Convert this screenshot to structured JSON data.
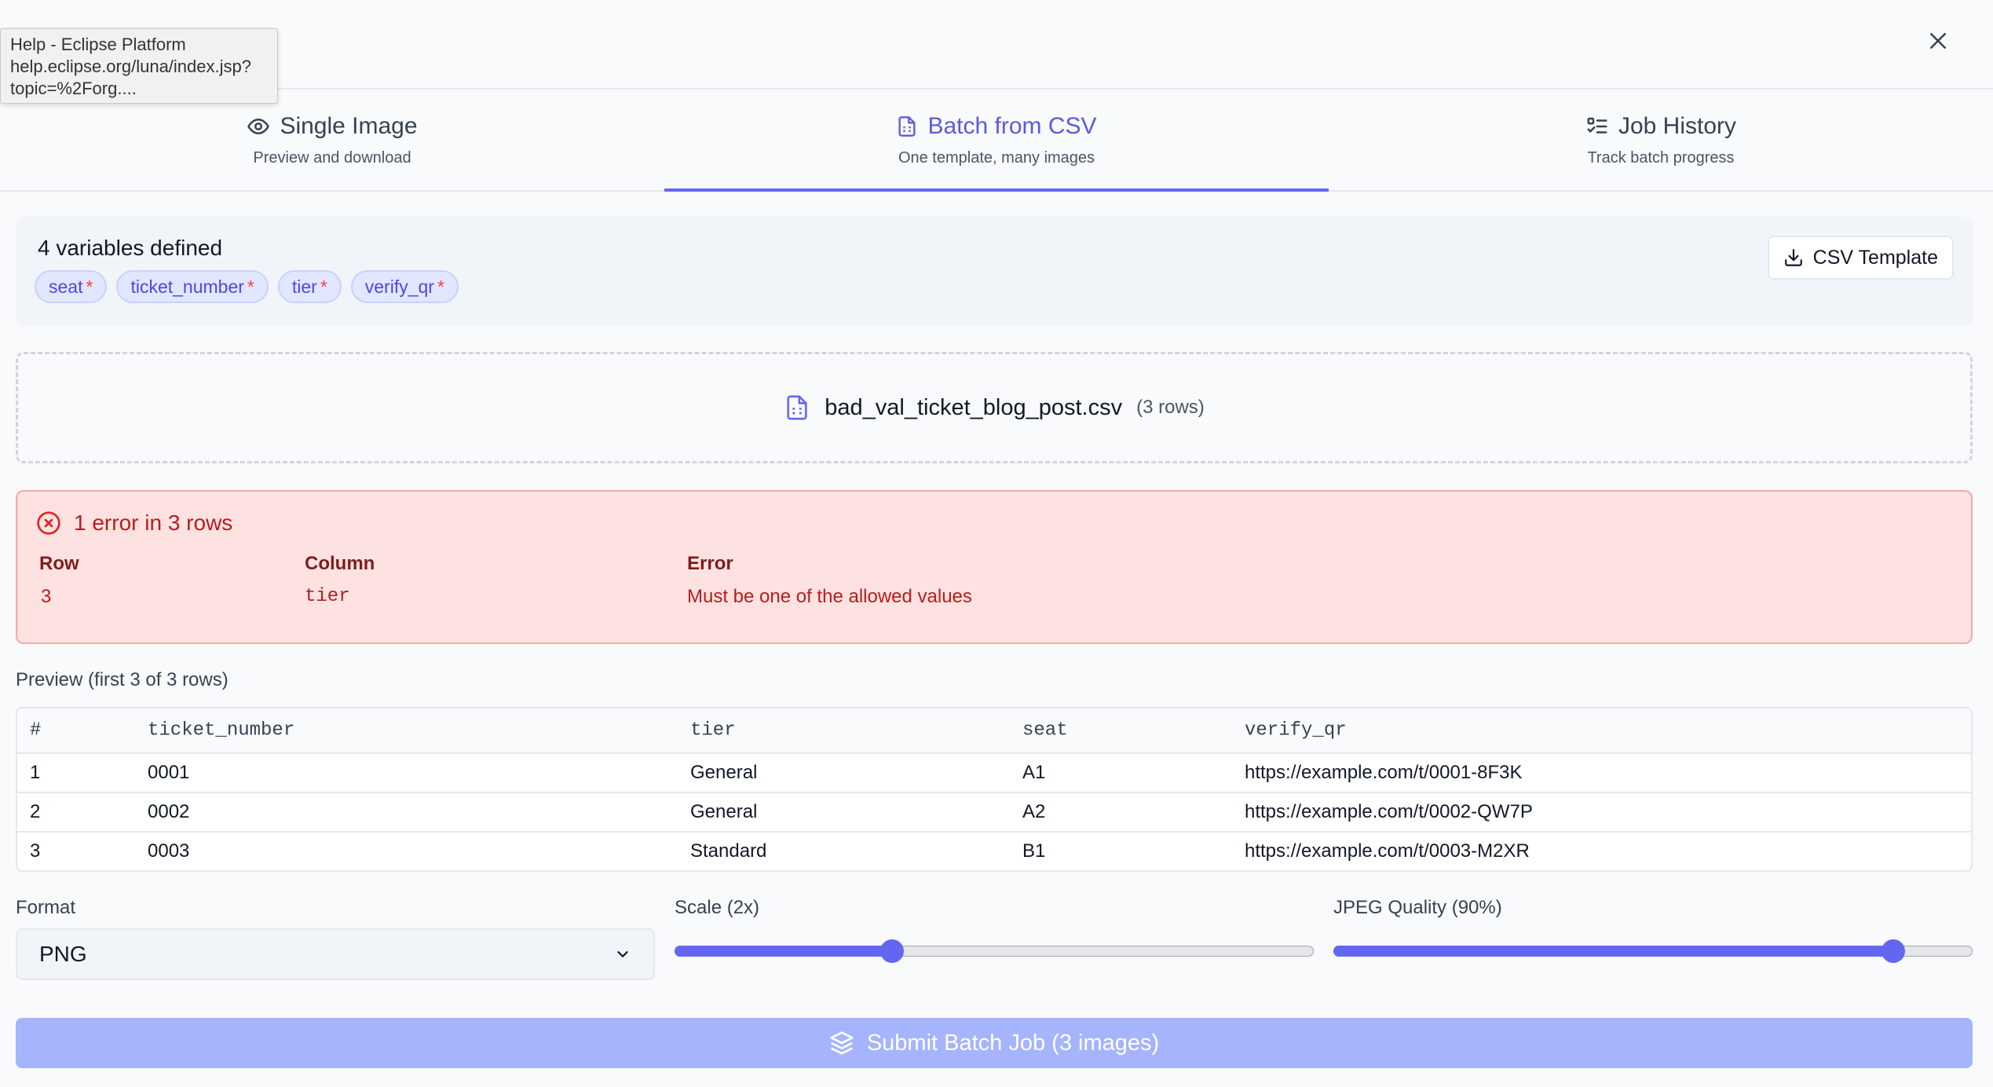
{
  "tooltip": {
    "line1": "Help - Eclipse Platform",
    "line2": "help.eclipse.org/luna/index.jsp?",
    "line3": "topic=%2Forg...."
  },
  "tabs": [
    {
      "label": "Single Image",
      "sub": "Preview and download",
      "icon": "eye-icon",
      "active": false
    },
    {
      "label": "Batch from CSV",
      "sub": "One template, many images",
      "icon": "file-spreadsheet-icon",
      "active": true
    },
    {
      "label": "Job History",
      "sub": "Track batch progress",
      "icon": "list-checks-icon",
      "active": false
    }
  ],
  "variables": {
    "title": "4 variables defined",
    "chips": [
      "seat",
      "ticket_number",
      "tier",
      "verify_qr"
    ],
    "required_marker": "*",
    "csv_template_label": "CSV Template"
  },
  "file": {
    "name": "bad_val_ticket_blog_post.csv",
    "rows": "(3 rows)"
  },
  "errors": {
    "title": "1 error in 3 rows",
    "headers": {
      "row": "Row",
      "column": "Column",
      "error": "Error"
    },
    "items": [
      {
        "row": "3",
        "column": "tier",
        "error": "Must be one of the allowed values"
      }
    ]
  },
  "preview": {
    "label": "Preview (first 3 of 3 rows)",
    "columns": [
      "#",
      "ticket_number",
      "tier",
      "seat",
      "verify_qr"
    ],
    "rows": [
      [
        "1",
        "0001",
        "General",
        "A1",
        "https://example.com/t/0001-8F3K"
      ],
      [
        "2",
        "0002",
        "General",
        "A2",
        "https://example.com/t/0002-QW7P"
      ],
      [
        "3",
        "0003",
        "Standard",
        "B1",
        "https://example.com/t/0003-M2XR"
      ]
    ]
  },
  "controls": {
    "format_label": "Format",
    "format_value": "PNG",
    "scale_label": "Scale (2x)",
    "scale_fraction": 0.34,
    "quality_label": "JPEG Quality (90%)",
    "quality_fraction": 0.876
  },
  "submit_label": "Submit Batch Job (3 images)",
  "colors": {
    "accent": "#6366f1",
    "error_bg": "#fee2e2",
    "error_text": "#b91c1c",
    "submit_disabled": "#a5b4fc"
  }
}
